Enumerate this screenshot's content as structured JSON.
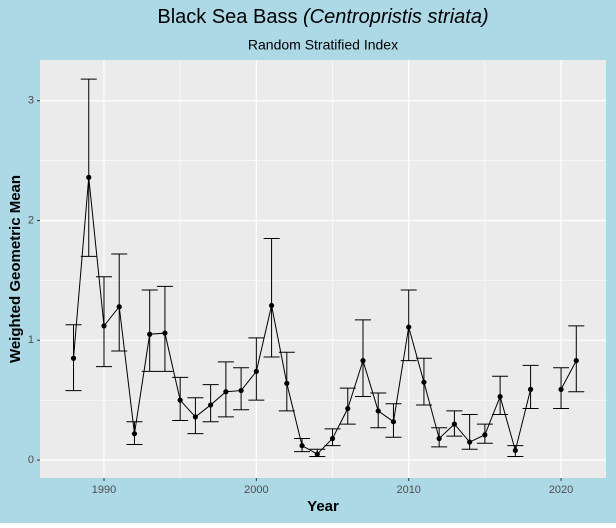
{
  "chart_data": {
    "type": "line",
    "title": [
      "Black Sea Bass",
      "(Centropristis striata)"
    ],
    "subtitle": "Random Stratified Index",
    "x_label": "Year",
    "y_label": "Weighted Geometric Mean",
    "x": [
      1988,
      1989,
      1990,
      1991,
      1992,
      1993,
      1994,
      1995,
      1996,
      1997,
      1998,
      1999,
      2000,
      2001,
      2002,
      2003,
      2004,
      2005,
      2006,
      2007,
      2008,
      2009,
      2010,
      2011,
      2012,
      2013,
      2014,
      2015,
      2016,
      2017,
      2018,
      2019,
      2020,
      2021
    ],
    "series": [
      {
        "color": "#000000",
        "values": [
          0.85,
          2.36,
          1.12,
          1.28,
          0.22,
          1.05,
          1.06,
          0.5,
          0.36,
          0.46,
          0.57,
          0.58,
          0.74,
          1.29,
          0.64,
          0.12,
          0.05,
          0.18,
          0.43,
          0.83,
          0.41,
          0.32,
          1.11,
          0.65,
          0.18,
          0.3,
          0.15,
          0.21,
          0.53,
          0.08,
          0.59,
          null,
          0.59,
          0.83
        ],
        "lower": [
          0.58,
          1.7,
          0.78,
          0.91,
          0.13,
          0.74,
          0.74,
          0.33,
          0.22,
          0.32,
          0.36,
          0.42,
          0.5,
          0.86,
          0.41,
          0.07,
          0.03,
          0.12,
          0.3,
          0.53,
          0.27,
          0.19,
          0.83,
          0.46,
          0.11,
          0.2,
          0.09,
          0.14,
          0.38,
          0.03,
          0.43,
          null,
          0.43,
          0.57
        ],
        "upper": [
          1.13,
          3.18,
          1.53,
          1.72,
          0.32,
          1.42,
          1.45,
          0.69,
          0.52,
          0.63,
          0.82,
          0.77,
          1.02,
          1.85,
          0.9,
          0.18,
          0.09,
          0.26,
          0.6,
          1.17,
          0.56,
          0.47,
          1.42,
          0.85,
          0.27,
          0.41,
          0.38,
          0.3,
          0.7,
          0.12,
          0.79,
          null,
          0.77,
          1.12
        ]
      }
    ],
    "xlim": [
      1985.8,
      2022.95
    ],
    "xticks": [
      1990,
      2000,
      2010,
      2020
    ],
    "minor_xticks": [
      1995,
      2005,
      2015
    ],
    "ylim": [
      -0.15,
      3.34
    ],
    "yticks": [
      0,
      1,
      2,
      3
    ],
    "minor_yticks": [
      0.5,
      1.5,
      2.5
    ],
    "grid": true,
    "panel_color": "#ebebeb",
    "background": "#add8e6"
  }
}
